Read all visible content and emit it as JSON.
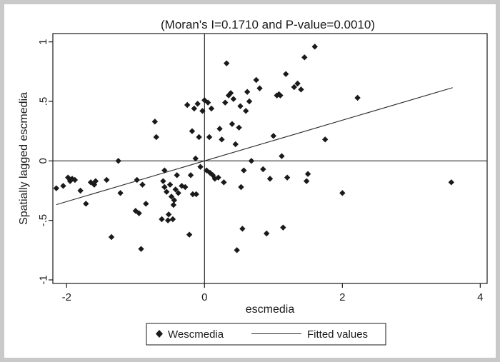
{
  "chart_data": {
    "type": "scatter",
    "title": "(Moran's I=0.1710 and P-value=0.0010)",
    "xlabel": "escmedia",
    "ylabel": "Spatially lagged escmedia",
    "xlim": [
      -2.2,
      4.1
    ],
    "ylim": [
      -1.03,
      1.07
    ],
    "xticks": [
      -2,
      0,
      2,
      4
    ],
    "yticks": [
      -1,
      -0.5,
      0,
      0.5,
      1
    ],
    "xtick_labels": [
      "-2",
      "0",
      "2",
      "4"
    ],
    "ytick_labels": [
      "-1",
      "-.5",
      "0",
      ".5",
      "1"
    ],
    "reference_lines": {
      "x": 0,
      "y": 0
    },
    "fitted_line": {
      "slope": 0.171,
      "intercept": 0.0,
      "x_range": [
        -2.15,
        3.6
      ]
    },
    "legend": {
      "position": "bottom",
      "items": [
        "Wescmedia",
        "Fitted values"
      ]
    },
    "series": [
      {
        "name": "Wescmedia",
        "marker": "diamond",
        "points": [
          [
            -2.15,
            -0.23
          ],
          [
            -2.05,
            -0.21
          ],
          [
            -1.98,
            -0.14
          ],
          [
            -1.95,
            -0.17
          ],
          [
            -1.92,
            -0.15
          ],
          [
            -1.88,
            -0.16
          ],
          [
            -1.8,
            -0.25
          ],
          [
            -1.72,
            -0.36
          ],
          [
            -1.65,
            -0.18
          ],
          [
            -1.6,
            -0.2
          ],
          [
            -1.58,
            -0.17
          ],
          [
            -1.42,
            -0.16
          ],
          [
            -1.35,
            -0.64
          ],
          [
            -1.25,
            0.0
          ],
          [
            -1.22,
            -0.27
          ],
          [
            -1.0,
            -0.42
          ],
          [
            -0.98,
            -0.16
          ],
          [
            -0.95,
            -0.44
          ],
          [
            -0.92,
            -0.74
          ],
          [
            -0.9,
            -0.2
          ],
          [
            -0.85,
            -0.36
          ],
          [
            -0.72,
            0.33
          ],
          [
            -0.7,
            0.2
          ],
          [
            -0.62,
            -0.49
          ],
          [
            -0.6,
            -0.17
          ],
          [
            -0.58,
            -0.08
          ],
          [
            -0.58,
            -0.22
          ],
          [
            -0.55,
            -0.26
          ],
          [
            -0.53,
            -0.5
          ],
          [
            -0.52,
            -0.45
          ],
          [
            -0.5,
            -0.2
          ],
          [
            -0.48,
            -0.3
          ],
          [
            -0.46,
            -0.49
          ],
          [
            -0.45,
            -0.37
          ],
          [
            -0.44,
            -0.33
          ],
          [
            -0.42,
            -0.24
          ],
          [
            -0.4,
            -0.12
          ],
          [
            -0.38,
            -0.27
          ],
          [
            -0.33,
            -0.21
          ],
          [
            -0.28,
            -0.22
          ],
          [
            -0.25,
            0.47
          ],
          [
            -0.22,
            -0.62
          ],
          [
            -0.2,
            -0.12
          ],
          [
            -0.18,
            0.25
          ],
          [
            -0.17,
            -0.28
          ],
          [
            -0.15,
            0.44
          ],
          [
            -0.13,
            0.02
          ],
          [
            -0.12,
            -0.28
          ],
          [
            -0.1,
            0.48
          ],
          [
            -0.08,
            0.2
          ],
          [
            -0.06,
            -0.05
          ],
          [
            -0.03,
            0.42
          ],
          [
            0.0,
            0.51
          ],
          [
            0.03,
            -0.08
          ],
          [
            0.05,
            0.49
          ],
          [
            0.07,
            0.2
          ],
          [
            0.08,
            -0.1
          ],
          [
            0.1,
            0.44
          ],
          [
            0.12,
            -0.12
          ],
          [
            0.15,
            -0.15
          ],
          [
            0.2,
            -0.14
          ],
          [
            0.22,
            0.27
          ],
          [
            0.25,
            0.18
          ],
          [
            0.28,
            -0.18
          ],
          [
            0.3,
            0.49
          ],
          [
            0.32,
            0.82
          ],
          [
            0.35,
            0.55
          ],
          [
            0.38,
            0.57
          ],
          [
            0.4,
            0.31
          ],
          [
            0.42,
            0.52
          ],
          [
            0.45,
            0.14
          ],
          [
            0.47,
            -0.75
          ],
          [
            0.5,
            0.28
          ],
          [
            0.52,
            0.46
          ],
          [
            0.53,
            -0.22
          ],
          [
            0.55,
            -0.57
          ],
          [
            0.57,
            -0.08
          ],
          [
            0.6,
            0.42
          ],
          [
            0.62,
            0.58
          ],
          [
            0.65,
            0.5
          ],
          [
            0.68,
            0.0
          ],
          [
            0.75,
            0.68
          ],
          [
            0.8,
            0.61
          ],
          [
            0.85,
            -0.07
          ],
          [
            0.9,
            -0.61
          ],
          [
            0.95,
            -0.15
          ],
          [
            1.0,
            0.21
          ],
          [
            1.05,
            0.55
          ],
          [
            1.08,
            0.56
          ],
          [
            1.1,
            0.55
          ],
          [
            1.12,
            0.04
          ],
          [
            1.14,
            -0.56
          ],
          [
            1.18,
            0.73
          ],
          [
            1.2,
            -0.14
          ],
          [
            1.3,
            0.62
          ],
          [
            1.35,
            0.65
          ],
          [
            1.4,
            0.6
          ],
          [
            1.45,
            0.87
          ],
          [
            1.48,
            -0.17
          ],
          [
            1.5,
            -0.11
          ],
          [
            1.6,
            0.96
          ],
          [
            1.75,
            0.18
          ],
          [
            2.0,
            -0.27
          ],
          [
            2.22,
            0.53
          ],
          [
            3.58,
            -0.18
          ]
        ]
      }
    ]
  }
}
